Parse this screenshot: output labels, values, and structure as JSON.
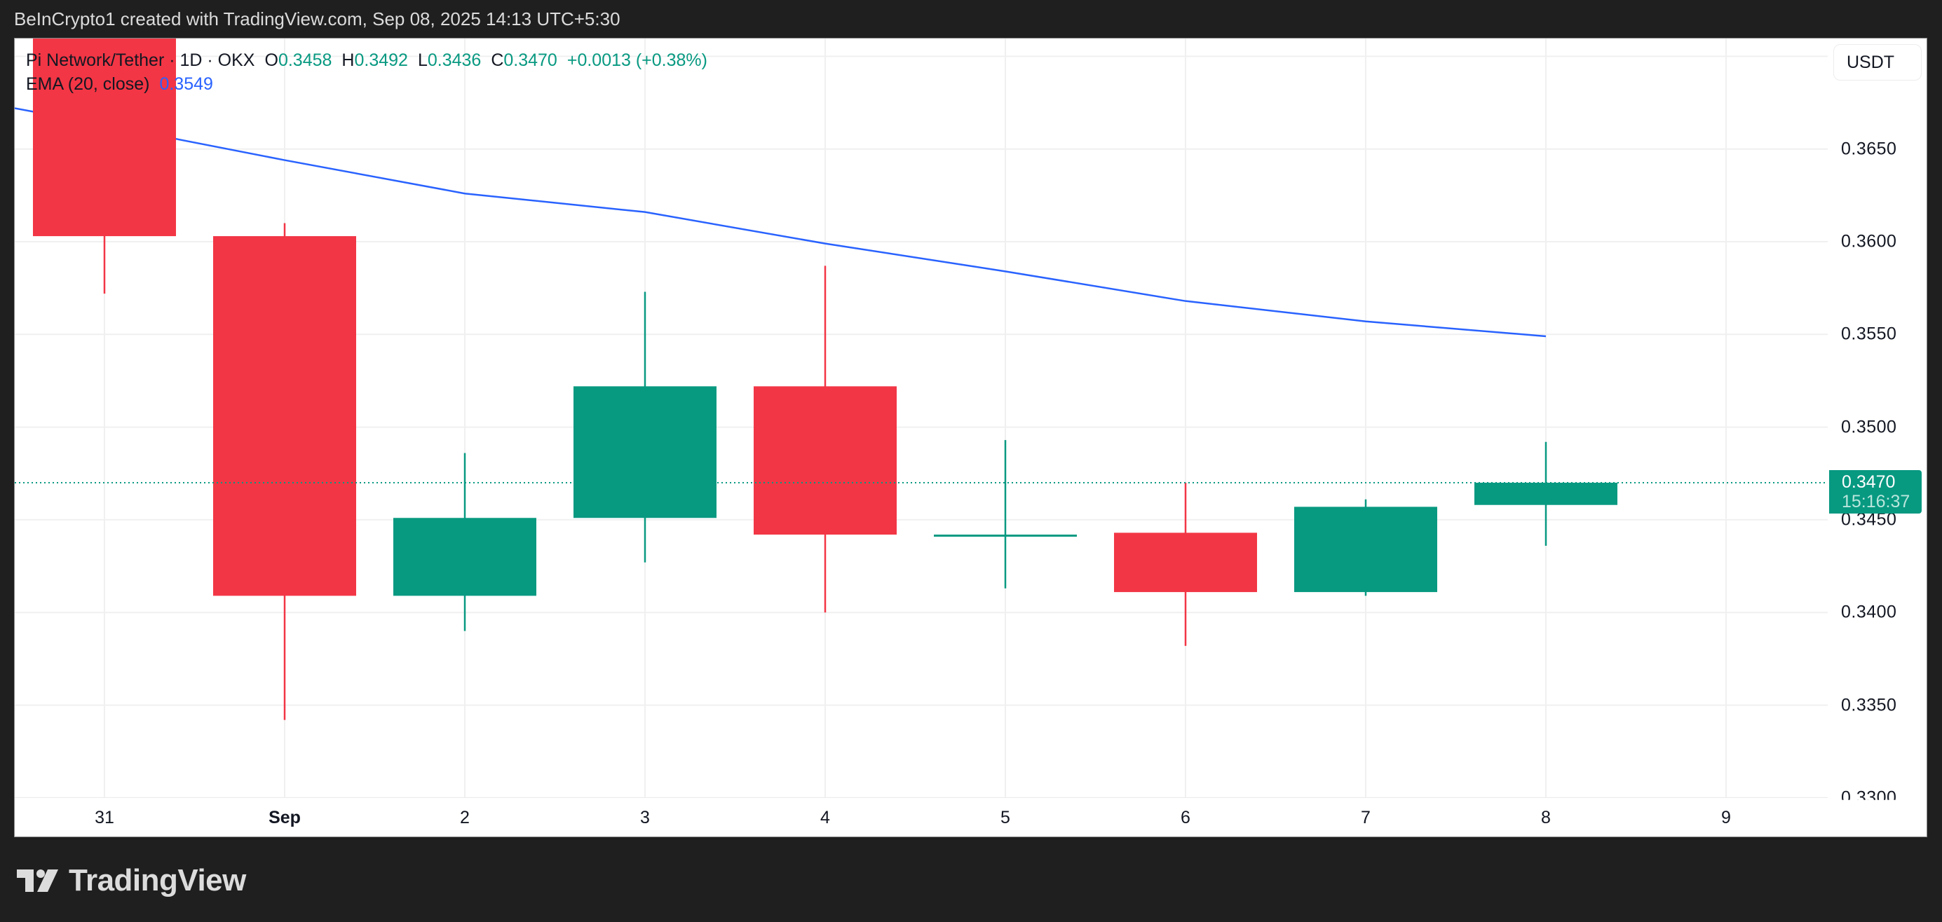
{
  "caption": "BeInCrypto1 created with TradingView.com, Sep 08, 2025 14:13 UTC+5:30",
  "legend": {
    "symbol": "Pi Network/Tether · 1D · OKX",
    "o_label": "O",
    "o_value": "0.3458",
    "h_label": "H",
    "h_value": "0.3492",
    "l_label": "L",
    "l_value": "0.3436",
    "c_label": "C",
    "c_value": "0.3470",
    "change": "+0.0013 (+0.38%)",
    "ema_label": "EMA (20, close)",
    "ema_value": "0.3549"
  },
  "currency_button": "USDT",
  "last_price": {
    "value": "0.3470",
    "countdown": "15:16:37"
  },
  "logo": {
    "icon": "tradingview-logo-icon",
    "text": "TradingView"
  },
  "colors": {
    "up": "#089981",
    "down": "#f23645",
    "ema": "#2962ff",
    "grid": "#f0f0f0",
    "background": "#1f1f1f"
  },
  "price_axis": {
    "labels": [
      "0.3650",
      "0.3600",
      "0.3550",
      "0.3500",
      "0.3450",
      "0.3400",
      "0.3350",
      "0.3300"
    ],
    "values": [
      0.365,
      0.36,
      0.355,
      0.35,
      0.345,
      0.34,
      0.335,
      0.33
    ]
  },
  "time_axis": {
    "labels": [
      "31",
      "Sep",
      "2",
      "3",
      "4",
      "5",
      "6",
      "7",
      "8",
      "9"
    ],
    "bold": [
      false,
      true,
      false,
      false,
      false,
      false,
      false,
      false,
      false,
      false
    ]
  },
  "chart_data": {
    "type": "candlestick",
    "title": "Pi Network/Tether · 1D · OKX",
    "xlabel": "",
    "ylabel": "USDT",
    "ylim": [
      0.33,
      0.371
    ],
    "grid": true,
    "categories": [
      "Aug 31",
      "Sep 1",
      "Sep 2",
      "Sep 3",
      "Sep 4",
      "Sep 5",
      "Sep 6",
      "Sep 7",
      "Sep 8"
    ],
    "candles": [
      {
        "date": "Aug 31",
        "open": 0.372,
        "high": 0.373,
        "low": 0.3572,
        "close": 0.3603
      },
      {
        "date": "Sep 1",
        "open": 0.3603,
        "high": 0.361,
        "low": 0.3342,
        "close": 0.3409
      },
      {
        "date": "Sep 2",
        "open": 0.3409,
        "high": 0.3486,
        "low": 0.339,
        "close": 0.3451
      },
      {
        "date": "Sep 3",
        "open": 0.3451,
        "high": 0.3573,
        "low": 0.3427,
        "close": 0.3522
      },
      {
        "date": "Sep 4",
        "open": 0.3522,
        "high": 0.3587,
        "low": 0.34,
        "close": 0.3442
      },
      {
        "date": "Sep 5",
        "open": 0.3442,
        "high": 0.3493,
        "low": 0.3413,
        "close": 0.3442
      },
      {
        "date": "Sep 6",
        "open": 0.3443,
        "high": 0.347,
        "low": 0.3382,
        "close": 0.3411
      },
      {
        "date": "Sep 7",
        "open": 0.3411,
        "high": 0.3461,
        "low": 0.3409,
        "close": 0.3457
      },
      {
        "date": "Sep 8",
        "open": 0.3458,
        "high": 0.3492,
        "low": 0.3436,
        "close": 0.347
      }
    ],
    "series": [
      {
        "name": "EMA (20, close)",
        "values": [
          0.3663,
          0.3644,
          0.3626,
          0.3616,
          0.3599,
          0.3584,
          0.3568,
          0.3557,
          0.3549
        ]
      }
    ],
    "ema_left_edge": 0.3672,
    "last_price_line": 0.347,
    "legend_position": "top-left"
  }
}
